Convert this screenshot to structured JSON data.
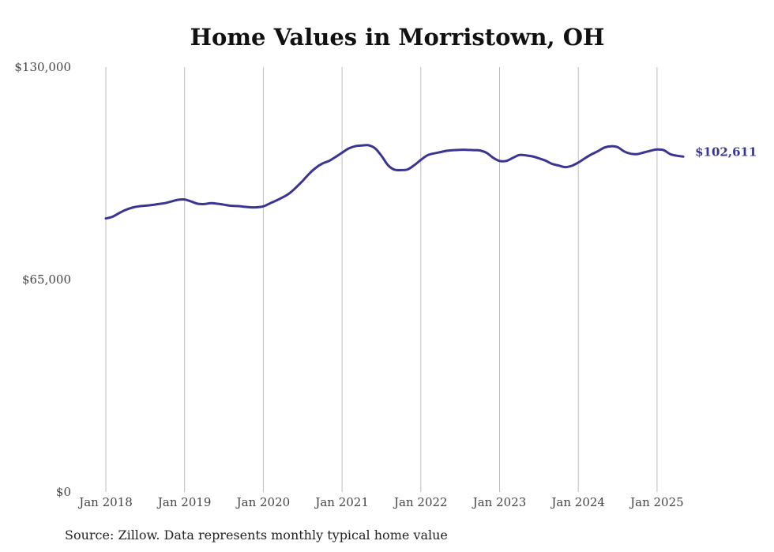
{
  "chart_data": {
    "type": "line",
    "title": "Home Values in Morristown, OH",
    "source": "Source: Zillow. Data represents monthly typical home value",
    "ylim": [
      0,
      130000
    ],
    "y_ticks": [
      {
        "value": 0,
        "label": "$0"
      },
      {
        "value": 65000,
        "label": "$65,000"
      },
      {
        "value": 130000,
        "label": "$130,000"
      }
    ],
    "x_ticks": [
      "Jan 2018",
      "Jan 2019",
      "Jan 2020",
      "Jan 2021",
      "Jan 2022",
      "Jan 2023",
      "Jan 2024",
      "Jan 2025"
    ],
    "grid": "vertical",
    "line_color": "#3a3593",
    "end_label": "$102,611",
    "series": [
      {
        "start": "2018-01",
        "frequency": "monthly",
        "values": [
          83700,
          84200,
          85300,
          86300,
          87000,
          87400,
          87600,
          87800,
          88100,
          88400,
          88900,
          89400,
          89500,
          88900,
          88200,
          88100,
          88400,
          88200,
          87900,
          87600,
          87500,
          87300,
          87100,
          87100,
          87400,
          88300,
          89200,
          90200,
          91400,
          93200,
          95200,
          97400,
          99200,
          100500,
          101300,
          102500,
          103800,
          105100,
          105800,
          106000,
          106100,
          105200,
          102900,
          100000,
          98600,
          98500,
          98700,
          100000,
          101600,
          103000,
          103600,
          104000,
          104400,
          104600,
          104700,
          104700,
          104600,
          104500,
          103800,
          102300,
          101300,
          101300,
          102200,
          103100,
          103000,
          102700,
          102100,
          101400,
          100400,
          99900,
          99400,
          99800,
          100800,
          102100,
          103300,
          104300,
          105400,
          105800,
          105500,
          104200,
          103500,
          103400,
          103900,
          104400,
          104800,
          104600,
          103400,
          102900,
          102611
        ]
      }
    ]
  }
}
